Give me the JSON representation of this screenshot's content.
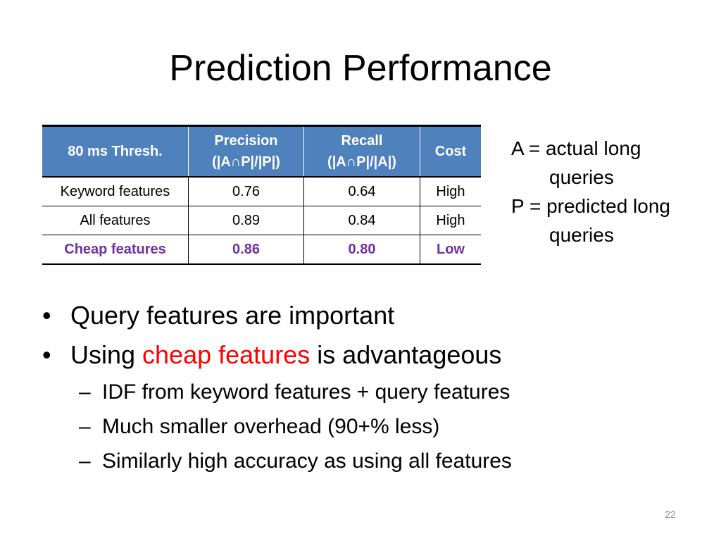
{
  "title": "Prediction Performance",
  "table": {
    "headers": [
      {
        "line1": "80 ms Thresh.",
        "line2": ""
      },
      {
        "line1": "Precision",
        "line2": "(|A∩P|/|P|)"
      },
      {
        "line1": "Recall",
        "line2": "(|A∩P|/|A|)"
      },
      {
        "line1": "Cost",
        "line2": ""
      }
    ],
    "rows": [
      [
        "Keyword features",
        "0.76",
        "0.64",
        "High"
      ],
      [
        "All features",
        "0.89",
        "0.84",
        "High"
      ],
      [
        "Cheap features",
        "0.86",
        "0.80",
        "Low"
      ]
    ]
  },
  "legend": {
    "a_line1": "A = actual long",
    "a_line2": "queries",
    "p_line1": "P = predicted long",
    "p_line2": "queries"
  },
  "bullets": {
    "b1": "Query features are important",
    "b2_prefix": "Using ",
    "b2_highlight": "cheap features",
    "b2_suffix": " is advantageous",
    "sub1": "IDF from keyword features + query features",
    "sub2": "Much smaller overhead (90+% less)",
    "sub3": "Similarly high accuracy as using all features"
  },
  "bullet_glyph": "•",
  "dash_glyph": "–",
  "highlight_color": "#ff0000",
  "accent_color": "#4f81bd",
  "emphasis_row_color": "#7030a0",
  "page_number": "22"
}
